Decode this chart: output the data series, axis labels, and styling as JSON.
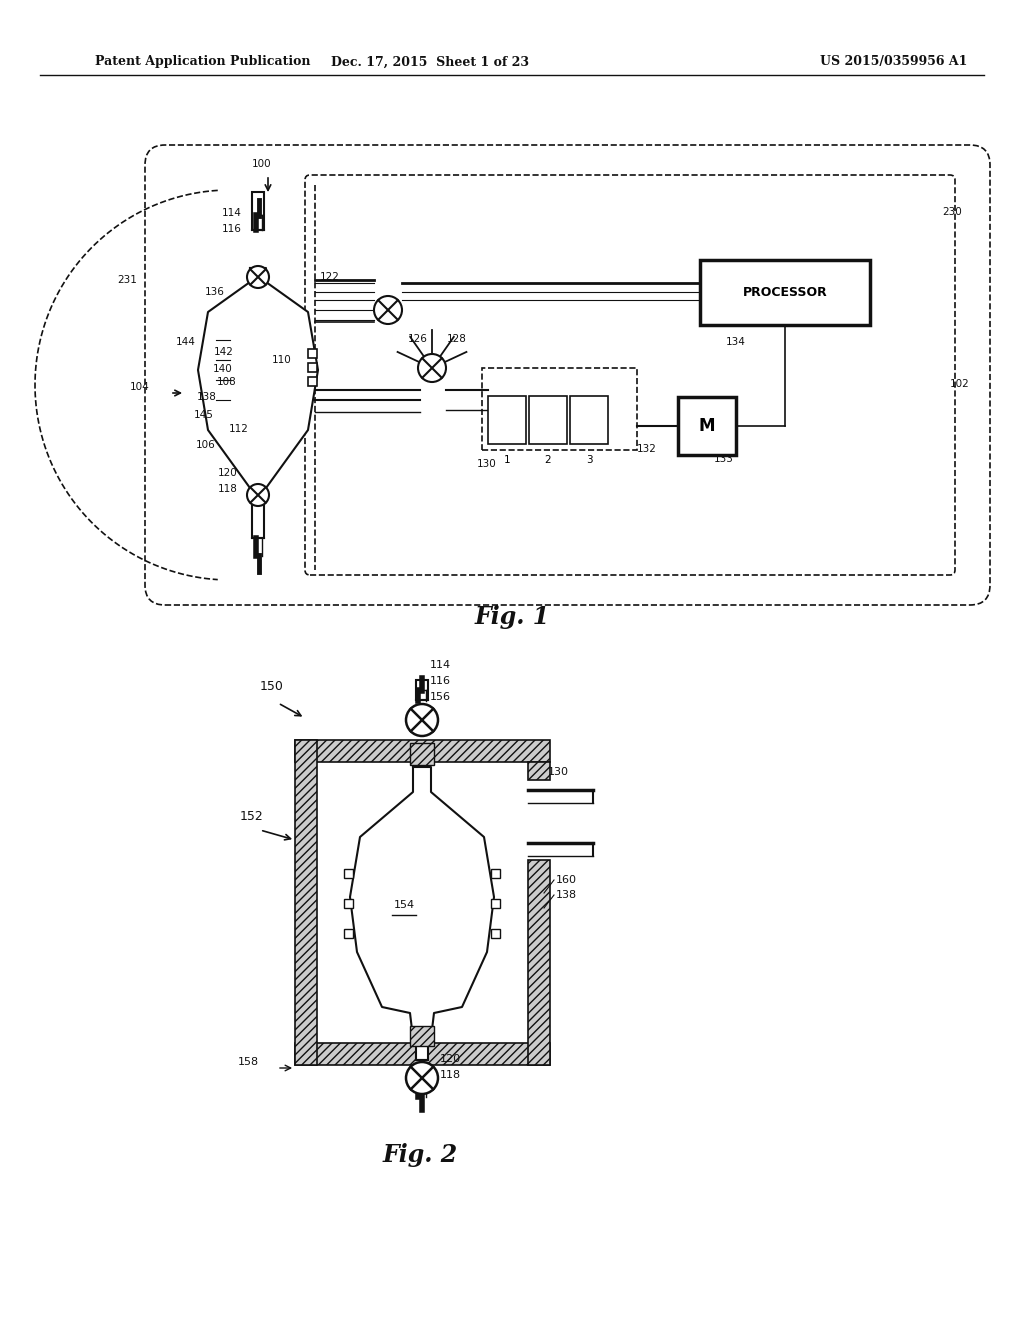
{
  "bg_color": "#ffffff",
  "text_color": "#000000",
  "header_left": "Patent Application Publication",
  "header_mid": "Dec. 17, 2015  Sheet 1 of 23",
  "header_right": "US 2015/0359956 A1",
  "fig1_caption": "Fig. 1",
  "fig2_caption": "Fig. 2"
}
